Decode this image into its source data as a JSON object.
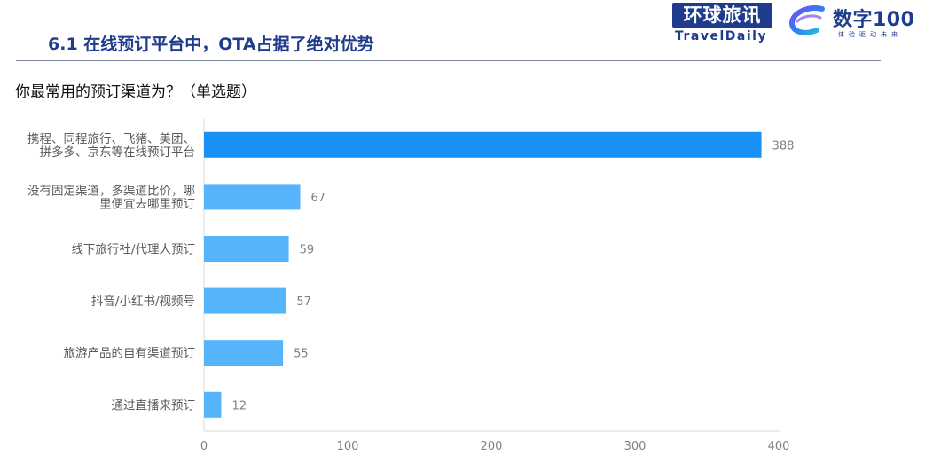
{
  "header": {
    "title": "6.1 在线预订平台中，OTA占据了绝对优势"
  },
  "logos": {
    "traveldaily_cn": "环球旅讯",
    "traveldaily_en": "TravelDaily",
    "digital100_main": "数字100",
    "digital100_sub": "体验驱动未来"
  },
  "question": "你最常用的预订渠道为？（单选题）",
  "colors": {
    "title": "#1f3c8c",
    "bar_primary": "#1890f5",
    "bar_light": "#55b4fb",
    "label": "#595959",
    "value": "#808080",
    "axis": "#d9d9d9"
  },
  "chart_data": {
    "type": "bar",
    "orientation": "horizontal",
    "categories": [
      [
        "携程、同程旅行、飞猪、美团、",
        "拼多多、京东等在线预订平台"
      ],
      [
        "没有固定渠道，多渠道比价，哪",
        "里便宜去哪里预订"
      ],
      [
        "线下旅行社/代理人预订"
      ],
      [
        "抖音/小红书/视频号"
      ],
      [
        "旅游产品的自有渠道预订"
      ],
      [
        "通过直播来预订"
      ]
    ],
    "values": [
      388,
      67,
      59,
      57,
      55,
      12
    ],
    "xlim": [
      0,
      400
    ],
    "xticks": [
      0,
      100,
      200,
      300,
      400
    ],
    "grid": false,
    "data_labels": true
  }
}
